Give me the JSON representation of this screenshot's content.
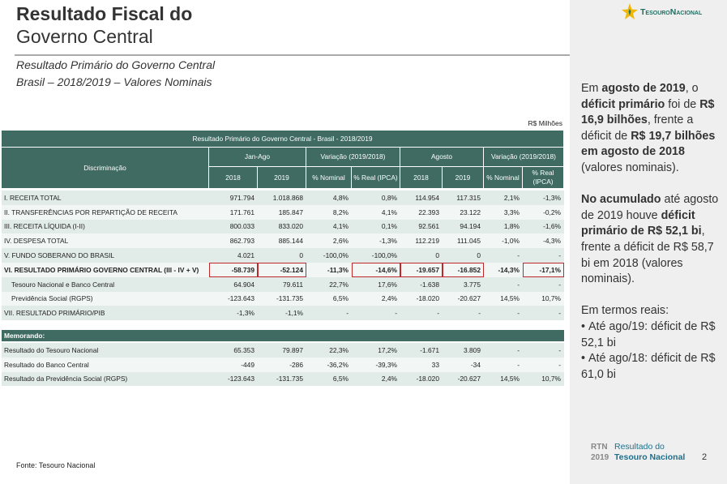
{
  "header": {
    "title_line1": "Resultado Fiscal do",
    "title_line2": "Governo Central",
    "subtitle_line1": "Resultado Primário do Governo Central",
    "subtitle_line2": "Brasil – 2018/2019 – Valores Nominais",
    "logo": "TesouroNacional"
  },
  "table": {
    "unit": "R$ Milhões",
    "title": "Resultado Primário do Governo Central - Brasil - 2018/2019",
    "row_header": "Discriminação",
    "groups": [
      "Jan-Ago",
      "Variação (2019/2018)",
      "Agosto",
      "Variação (2019/2018)"
    ],
    "subheaders": [
      "2018",
      "2019",
      "% Nominal",
      "% Real (IPCA)",
      "2018",
      "2019",
      "% Nominal",
      "% Real (IPCA)"
    ],
    "rows": [
      {
        "label": "I. RECEITA TOTAL",
        "values": [
          "971.794",
          "1.018.868",
          "4,8%",
          "0,8%",
          "114.954",
          "117.315",
          "2,1%",
          "-1,3%"
        ]
      },
      {
        "label": "II. TRANSFERÊNCIAS POR REPARTIÇÃO DE RECEITA",
        "values": [
          "171.761",
          "185.847",
          "8,2%",
          "4,1%",
          "22.393",
          "23.122",
          "3,3%",
          "-0,2%"
        ]
      },
      {
        "label": "III. RECEITA LÍQUIDA (I-II)",
        "values": [
          "800.033",
          "833.020",
          "4,1%",
          "0,1%",
          "92.561",
          "94.194",
          "1,8%",
          "-1,6%"
        ]
      },
      {
        "label": "IV. DESPESA TOTAL",
        "values": [
          "862.793",
          "885.144",
          "2,6%",
          "-1,3%",
          "112.219",
          "111.045",
          "-1,0%",
          "-4,3%"
        ]
      },
      {
        "label": "V. FUNDO SOBERANO DO BRASIL",
        "values": [
          "4.021",
          "0",
          "-100,0%",
          "-100,0%",
          "0",
          "0",
          "-",
          "-"
        ]
      },
      {
        "label": "VI. RESULTADO PRIMÁRIO GOVERNO CENTRAL (III - IV + V)",
        "values": [
          "-58.739",
          "-52.124",
          "-11,3%",
          "-14,6%",
          "-19.657",
          "-16.852",
          "-14,3%",
          "-17,1%"
        ],
        "bold": true,
        "highlight": [
          0,
          1,
          3,
          4,
          5,
          7
        ]
      },
      {
        "label": "Tesouro Nacional e Banco Central",
        "values": [
          "64.904",
          "79.611",
          "22,7%",
          "17,6%",
          "-1.638",
          "3.775",
          "-",
          "-"
        ],
        "indent": true
      },
      {
        "label": "Previdência Social (RGPS)",
        "values": [
          "-123.643",
          "-131.735",
          "6,5%",
          "2,4%",
          "-18.020",
          "-20.627",
          "14,5%",
          "10,7%"
        ],
        "indent": true
      },
      {
        "label": "VII. RESULTADO PRIMÁRIO/PIB",
        "values": [
          "-1,3%",
          "-1,1%",
          "-",
          "-",
          "-",
          "-",
          "-",
          "-"
        ]
      }
    ],
    "memo_title": "Memorando:",
    "memo_rows": [
      {
        "label": "Resultado do Tesouro Nacional",
        "values": [
          "65.353",
          "79.897",
          "22,3%",
          "17,2%",
          "-1.671",
          "3.809",
          "-",
          "-"
        ]
      },
      {
        "label": "Resultado do Banco Central",
        "values": [
          "-449",
          "-286",
          "-36,2%",
          "-39,3%",
          "33",
          "-34",
          "-",
          "-"
        ]
      },
      {
        "label": "Resultado da Previdência Social (RGPS)",
        "values": [
          "-123.643",
          "-131.735",
          "6,5%",
          "2,4%",
          "-18.020",
          "-20.627",
          "14,5%",
          "10,7%"
        ]
      }
    ]
  },
  "side_panel": {
    "paragraphs": [
      [
        {
          "text": "Em "
        },
        {
          "text": "agosto de 2019",
          "bold": true
        },
        {
          "text": ", o "
        },
        {
          "text": "déficit primário",
          "bold": true
        },
        {
          "text": " foi de "
        },
        {
          "text": "R$ 16,9 bilhões",
          "bold": true
        },
        {
          "text": ", frente a déficit de "
        },
        {
          "text": "R$ 19,7 bilhões em agosto de 2018",
          "bold": true
        },
        {
          "text": " (valores nominais)."
        }
      ],
      [
        {
          "text": "No acumulado",
          "bold": true
        },
        {
          "text": " até agosto de 2019 houve "
        },
        {
          "text": "déficit primário de R$ 52,1 bi",
          "bold": true
        },
        {
          "text": ", frente a déficit de R$ 58,7 bi em 2018 (valores nominais)."
        }
      ],
      [
        {
          "text": "Em termos reais:"
        }
      ]
    ],
    "bullets": [
      "Até ago/19: déficit de R$ 52,1 bi",
      "Até ago/18: déficit de R$ 61,0 bi"
    ]
  },
  "footer": {
    "source": "Fonte: Tesouro Nacional",
    "brand_short": "RTN",
    "brand_year": "2019",
    "brand_line1": "Resultado do",
    "brand_line2": "Tesouro Nacional",
    "page": "2"
  }
}
